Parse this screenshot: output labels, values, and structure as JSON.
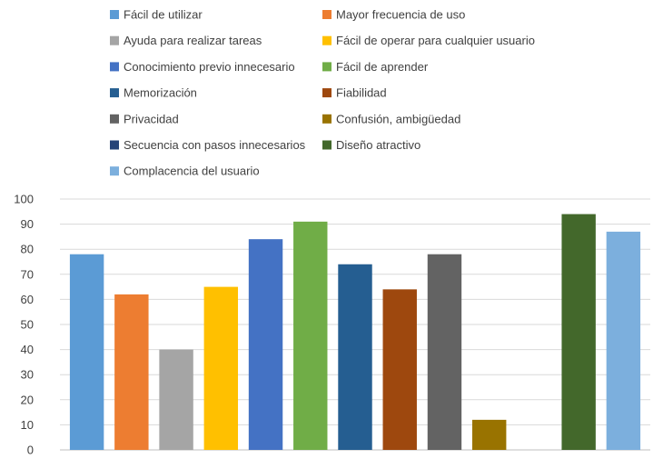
{
  "chart_data": {
    "type": "bar",
    "title": "",
    "xlabel": "",
    "ylabel": "",
    "ylim": [
      0,
      100
    ],
    "yticks": [
      0,
      10,
      20,
      30,
      40,
      50,
      60,
      70,
      80,
      90,
      100
    ],
    "grid": true,
    "legend_position": "top",
    "series": [
      {
        "name": "Fácil de utilizar",
        "value": 78,
        "color": "#5B9BD5"
      },
      {
        "name": "Mayor frecuencia de uso",
        "value": 62,
        "color": "#ED7D31"
      },
      {
        "name": "Ayuda para realizar tareas",
        "value": 40,
        "color": "#A5A5A5"
      },
      {
        "name": "Fácil de operar para cualquier usuario",
        "value": 65,
        "color": "#FFC000"
      },
      {
        "name": "Conocimiento previo innecesario",
        "value": 84,
        "color": "#4472C4"
      },
      {
        "name": "Fácil de aprender",
        "value": 91,
        "color": "#70AD47"
      },
      {
        "name": "Memorización",
        "value": 74,
        "color": "#255E91"
      },
      {
        "name": "Fiabilidad",
        "value": 64,
        "color": "#9E480E"
      },
      {
        "name": "Privacidad",
        "value": 78,
        "color": "#636363"
      },
      {
        "name": "Confusión, ambigüedad",
        "value": 12,
        "color": "#997300"
      },
      {
        "name": "Secuencia con pasos innecesarios",
        "value": 0,
        "color": "#264478"
      },
      {
        "name": "Diseño atractivo",
        "value": 94,
        "color": "#43682B"
      },
      {
        "name": "Complacencia del usuario",
        "value": 87,
        "color": "#7CAFDD"
      }
    ]
  }
}
